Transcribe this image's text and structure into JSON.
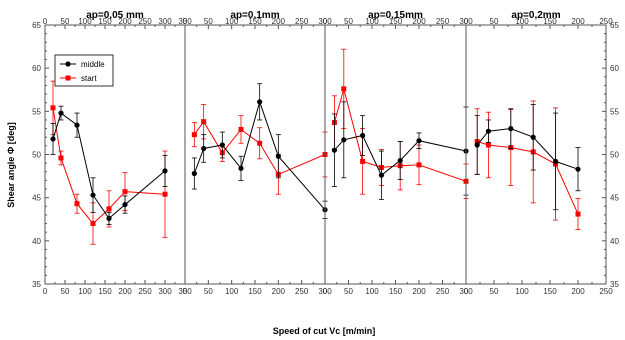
{
  "chart_data": {
    "type": "line",
    "xlabel": "Speed of cut Vc [m/min]",
    "ylabel": "Shear angle Φ [deg]",
    "ylim": [
      35,
      65
    ],
    "yticks": [
      "35",
      "40",
      "45",
      "50",
      "55",
      "60",
      "65"
    ],
    "xlim": [
      0,
      350
    ],
    "xticks": [
      "0",
      "50",
      "100",
      "150",
      "200",
      "250",
      "300",
      "350"
    ],
    "grid": false,
    "legend_position": "top-left of first panel",
    "colors": {
      "middle": "#000000",
      "start": "#ff0000",
      "axes": "#555555"
    },
    "panels": [
      {
        "title": "ap=0,05 mm",
        "xlim": [
          0,
          350
        ],
        "xticks": [
          "0",
          "50",
          "100",
          "150",
          "200",
          "250",
          "300",
          "350"
        ],
        "series": [
          {
            "name": "middle",
            "points": [
              {
                "x": 20,
                "y": 51.8,
                "err": 1.8
              },
              {
                "x": 40,
                "y": 54.8,
                "err": 0.8
              },
              {
                "x": 80,
                "y": 53.4,
                "err": 1.4
              },
              {
                "x": 120,
                "y": 45.3,
                "err": 2.0
              },
              {
                "x": 160,
                "y": 42.6,
                "err": 0.7
              },
              {
                "x": 200,
                "y": 44.2,
                "err": 1.0
              },
              {
                "x": 300,
                "y": 48.1,
                "err": 1.8
              }
            ]
          },
          {
            "name": "start",
            "points": [
              {
                "x": 20,
                "y": 55.4,
                "err": 3.1
              },
              {
                "x": 40,
                "y": 49.6,
                "err": 0.8
              },
              {
                "x": 80,
                "y": 44.3,
                "err": 1.1
              },
              {
                "x": 120,
                "y": 42.0,
                "err": 2.4
              },
              {
                "x": 160,
                "y": 43.7,
                "err": 2.1
              },
              {
                "x": 200,
                "y": 45.7,
                "err": 2.2
              },
              {
                "x": 300,
                "y": 45.4,
                "err": 5.0
              }
            ]
          }
        ]
      },
      {
        "title": "ap=0,1mm",
        "xlim": [
          0,
          300
        ],
        "xticks": [
          "0",
          "50",
          "100",
          "150",
          "200",
          "250",
          "300"
        ],
        "series": [
          {
            "name": "middle",
            "points": [
              {
                "x": 20,
                "y": 47.8,
                "err": 1.8
              },
              {
                "x": 40,
                "y": 50.7,
                "err": 1.6
              },
              {
                "x": 80,
                "y": 51.1,
                "err": 1.5
              },
              {
                "x": 120,
                "y": 48.4,
                "err": 1.4
              },
              {
                "x": 160,
                "y": 56.1,
                "err": 2.1
              },
              {
                "x": 200,
                "y": 49.8,
                "err": 2.5
              },
              {
                "x": 300,
                "y": 43.6,
                "err": 1.0
              }
            ]
          },
          {
            "name": "start",
            "points": [
              {
                "x": 20,
                "y": 52.3,
                "err": 1.4
              },
              {
                "x": 40,
                "y": 53.8,
                "err": 2.0
              },
              {
                "x": 80,
                "y": 50.2,
                "err": 1.0
              },
              {
                "x": 120,
                "y": 52.9,
                "err": 1.6
              },
              {
                "x": 160,
                "y": 51.3,
                "err": 1.8
              },
              {
                "x": 200,
                "y": 47.7,
                "err": 2.3
              },
              {
                "x": 300,
                "y": 50.0,
                "err": 2.6
              }
            ]
          }
        ]
      },
      {
        "title": "ap=0,15mm",
        "xlim": [
          0,
          300
        ],
        "xticks": [
          "0",
          "50",
          "100",
          "150",
          "200",
          "250",
          "300"
        ],
        "series": [
          {
            "name": "middle",
            "points": [
              {
                "x": 20,
                "y": 50.5,
                "err": 4.2
              },
              {
                "x": 40,
                "y": 51.7,
                "err": 4.4
              },
              {
                "x": 80,
                "y": 52.2,
                "err": 2.3
              },
              {
                "x": 120,
                "y": 47.6,
                "err": 2.8
              },
              {
                "x": 160,
                "y": 49.3,
                "err": 2.2
              },
              {
                "x": 200,
                "y": 51.6,
                "err": 0.9
              },
              {
                "x": 300,
                "y": 50.4,
                "err": 5.1
              }
            ]
          },
          {
            "name": "start",
            "points": [
              {
                "x": 20,
                "y": 53.7,
                "err": 3.1
              },
              {
                "x": 40,
                "y": 57.6,
                "err": 4.6
              },
              {
                "x": 80,
                "y": 49.2,
                "err": 3.8
              },
              {
                "x": 120,
                "y": 48.5,
                "err": 2.1
              },
              {
                "x": 160,
                "y": 48.7,
                "err": 2.8
              },
              {
                "x": 200,
                "y": 48.8,
                "err": 2.3
              },
              {
                "x": 300,
                "y": 46.9,
                "err": 2.0
              }
            ]
          }
        ]
      },
      {
        "title": "ap=0,2mm",
        "xlim": [
          0,
          250
        ],
        "xticks": [
          "0",
          "50",
          "100",
          "150",
          "200",
          "250"
        ],
        "series": [
          {
            "name": "middle",
            "points": [
              {
                "x": 20,
                "y": 51.1,
                "err": 3.4
              },
              {
                "x": 40,
                "y": 52.7,
                "err": 1.3
              },
              {
                "x": 80,
                "y": 53.0,
                "err": 2.3
              },
              {
                "x": 120,
                "y": 52.0,
                "err": 3.8
              },
              {
                "x": 160,
                "y": 49.2,
                "err": 5.6
              },
              {
                "x": 200,
                "y": 48.3,
                "err": 2.5
              }
            ]
          },
          {
            "name": "start",
            "points": [
              {
                "x": 20,
                "y": 51.5,
                "err": 3.8
              },
              {
                "x": 40,
                "y": 51.1,
                "err": 3.8
              },
              {
                "x": 80,
                "y": 50.8,
                "err": 4.4
              },
              {
                "x": 120,
                "y": 50.3,
                "err": 5.9
              },
              {
                "x": 160,
                "y": 48.9,
                "err": 6.5
              },
              {
                "x": 200,
                "y": 43.1,
                "err": 1.8
              }
            ]
          }
        ]
      }
    ]
  }
}
